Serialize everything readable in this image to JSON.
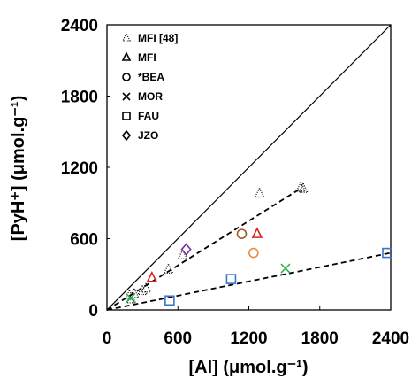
{
  "chart_data": {
    "type": "scatter",
    "title": "",
    "xlabel": "[Al] (μmol.g⁻¹)",
    "ylabel": "[PyH⁺] (μmol.g⁻¹)",
    "xlim": [
      0,
      2400
    ],
    "ylim": [
      0,
      2400
    ],
    "xticks": [
      "0",
      "600",
      "1200",
      "1800",
      "2400"
    ],
    "yticks": [
      "0",
      "600",
      "1200",
      "1800",
      "2400"
    ],
    "grid": false,
    "legend_position": "top-left",
    "series": [
      {
        "name": "MFI [48]",
        "marker": "dotted-triangle",
        "color": "#000000",
        "points": [
          [
            190,
            120
          ],
          [
            205,
            90
          ],
          [
            230,
            135
          ],
          [
            300,
            160
          ],
          [
            330,
            180
          ],
          [
            380,
            270
          ],
          [
            520,
            340
          ],
          [
            640,
            460
          ],
          [
            1290,
            980
          ],
          [
            1640,
            1030
          ],
          [
            1660,
            1020
          ]
        ]
      },
      {
        "name": "MFI",
        "marker": "triangle",
        "color": "#e02020",
        "points": [
          [
            380,
            270
          ],
          [
            1270,
            640
          ]
        ]
      },
      {
        "name": "*BEA",
        "marker": "circle",
        "color": "#9a5a2a",
        "points": [
          [
            1140,
            640
          ],
          [
            1240,
            480
          ]
        ],
        "point_colors": [
          "#9a5a2a",
          "#f08c3c"
        ]
      },
      {
        "name": "MOR",
        "marker": "x",
        "color": "#2bb34a",
        "points": [
          [
            1510,
            350
          ],
          [
            200,
            100
          ]
        ]
      },
      {
        "name": "FAU",
        "marker": "square",
        "color": "#3a76c8",
        "points": [
          [
            530,
            80
          ],
          [
            1050,
            260
          ],
          [
            2370,
            480
          ]
        ]
      },
      {
        "name": "JZO",
        "marker": "diamond",
        "color": "#7030a0",
        "points": [
          [
            670,
            510
          ]
        ]
      }
    ],
    "reference_lines": [
      {
        "style": "solid",
        "from": [
          0,
          0
        ],
        "to": [
          2400,
          2400
        ]
      },
      {
        "style": "dashed",
        "from": [
          0,
          0
        ],
        "to": [
          1650,
          1030
        ]
      },
      {
        "style": "dashed",
        "from": [
          0,
          0
        ],
        "to": [
          2400,
          480
        ]
      }
    ]
  }
}
